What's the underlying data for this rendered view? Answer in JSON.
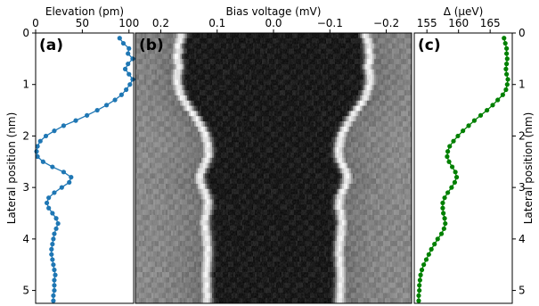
{
  "panels": {
    "a": "(a)",
    "b": "(b)",
    "c": "(c)"
  },
  "chart_data": [
    {
      "type": "line",
      "panel_label": "(a)",
      "xlabel": "Elevation (pm)",
      "ylabel": "Lateral position (nm)",
      "xlim": [
        0,
        105
      ],
      "ylim": [
        5.25,
        0
      ],
      "xticks": [
        0,
        50,
        100
      ],
      "xtick_labels": [
        "0",
        "50",
        "100"
      ],
      "yticks": [
        0,
        1,
        2,
        3,
        4,
        5
      ],
      "ytick_labels": [
        "0",
        "1",
        "2",
        "3",
        "4",
        "5"
      ],
      "color": "#1f77b4",
      "y": [
        0.1,
        0.2,
        0.3,
        0.4,
        0.5,
        0.6,
        0.7,
        0.8,
        0.9,
        1.0,
        1.1,
        1.2,
        1.3,
        1.4,
        1.5,
        1.6,
        1.7,
        1.8,
        1.9,
        2.0,
        2.1,
        2.2,
        2.3,
        2.4,
        2.5,
        2.6,
        2.7,
        2.8,
        2.9,
        3.0,
        3.1,
        3.2,
        3.3,
        3.4,
        3.5,
        3.6,
        3.7,
        3.8,
        3.9,
        4.0,
        4.1,
        4.2,
        4.3,
        4.4,
        4.5,
        4.6,
        4.7,
        4.8,
        4.9,
        5.0,
        5.1,
        5.2
      ],
      "x": [
        90,
        94,
        100,
        99,
        104,
        99,
        96,
        100,
        104,
        101,
        97,
        92,
        85,
        76,
        66,
        55,
        43,
        30,
        20,
        11,
        5,
        2,
        1,
        2,
        8,
        18,
        30,
        38,
        36,
        28,
        20,
        14,
        12,
        14,
        18,
        22,
        24,
        22,
        20,
        19,
        18,
        17,
        17,
        18,
        19,
        20,
        21,
        20,
        20,
        20,
        19,
        19
      ]
    },
    {
      "type": "heatmap",
      "panel_label": "(b)",
      "xlabel": "Bias voltage (mV)",
      "xlim": [
        0.245,
        -0.245
      ],
      "ylim": [
        5.25,
        0
      ],
      "xticks": [
        0.2,
        0.1,
        0.0,
        -0.1,
        -0.2
      ],
      "xtick_labels": [
        "0.2",
        "0.1",
        "0.0",
        "−0.1",
        "−0.2"
      ],
      "colormap": "gray",
      "value_meaning": "conductance (bright = high)",
      "gap_edge_positive_mV": [
        0.154,
        0.157,
        0.16,
        0.159,
        0.162,
        0.16,
        0.158,
        0.16,
        0.162,
        0.161,
        0.159,
        0.156,
        0.152,
        0.146,
        0.14,
        0.133,
        0.127,
        0.121,
        0.116,
        0.112,
        0.109,
        0.107,
        0.106,
        0.106,
        0.109,
        0.113,
        0.118,
        0.121,
        0.12,
        0.117,
        0.113,
        0.109,
        0.107,
        0.107,
        0.109,
        0.111,
        0.112,
        0.111,
        0.11,
        0.109,
        0.108,
        0.107,
        0.107,
        0.108,
        0.108,
        0.109,
        0.11,
        0.109,
        0.109,
        0.109,
        0.108,
        0.108
      ]
    },
    {
      "type": "line",
      "panel_label": "(c)",
      "xlabel": "Δ (µeV)",
      "ylabel": "Lateral position (nm)",
      "xlim": [
        153,
        168.5
      ],
      "ylim": [
        5.25,
        0
      ],
      "xticks": [
        155,
        160,
        165
      ],
      "xtick_labels": [
        "155",
        "160",
        "165"
      ],
      "yticks": [
        0,
        1,
        2,
        3,
        4,
        5
      ],
      "ytick_labels": [
        "0",
        "1",
        "2",
        "3",
        "4",
        "5"
      ],
      "color": "#008000",
      "y": [
        0.1,
        0.2,
        0.3,
        0.4,
        0.5,
        0.6,
        0.7,
        0.8,
        0.9,
        1.0,
        1.1,
        1.2,
        1.3,
        1.4,
        1.5,
        1.6,
        1.7,
        1.8,
        1.9,
        2.0,
        2.1,
        2.2,
        2.3,
        2.4,
        2.5,
        2.6,
        2.7,
        2.8,
        2.9,
        3.0,
        3.1,
        3.2,
        3.3,
        3.4,
        3.5,
        3.6,
        3.7,
        3.8,
        3.9,
        4.0,
        4.1,
        4.2,
        4.3,
        4.4,
        4.5,
        4.6,
        4.7,
        4.8,
        4.9,
        5.0,
        5.1,
        5.2
      ],
      "x": [
        167.2,
        167.4,
        167.6,
        167.6,
        167.7,
        167.6,
        167.5,
        167.6,
        167.8,
        167.7,
        167.5,
        167.0,
        166.2,
        165.4,
        164.5,
        163.5,
        162.5,
        161.6,
        160.7,
        159.9,
        159.2,
        158.6,
        158.3,
        158.2,
        158.5,
        159.0,
        159.5,
        159.7,
        159.4,
        158.9,
        158.3,
        157.8,
        157.5,
        157.5,
        157.6,
        157.8,
        157.9,
        157.7,
        157.3,
        156.7,
        156.2,
        155.7,
        155.3,
        154.9,
        154.5,
        154.2,
        154.0,
        153.9,
        153.8,
        153.8,
        153.7,
        153.7
      ]
    }
  ]
}
